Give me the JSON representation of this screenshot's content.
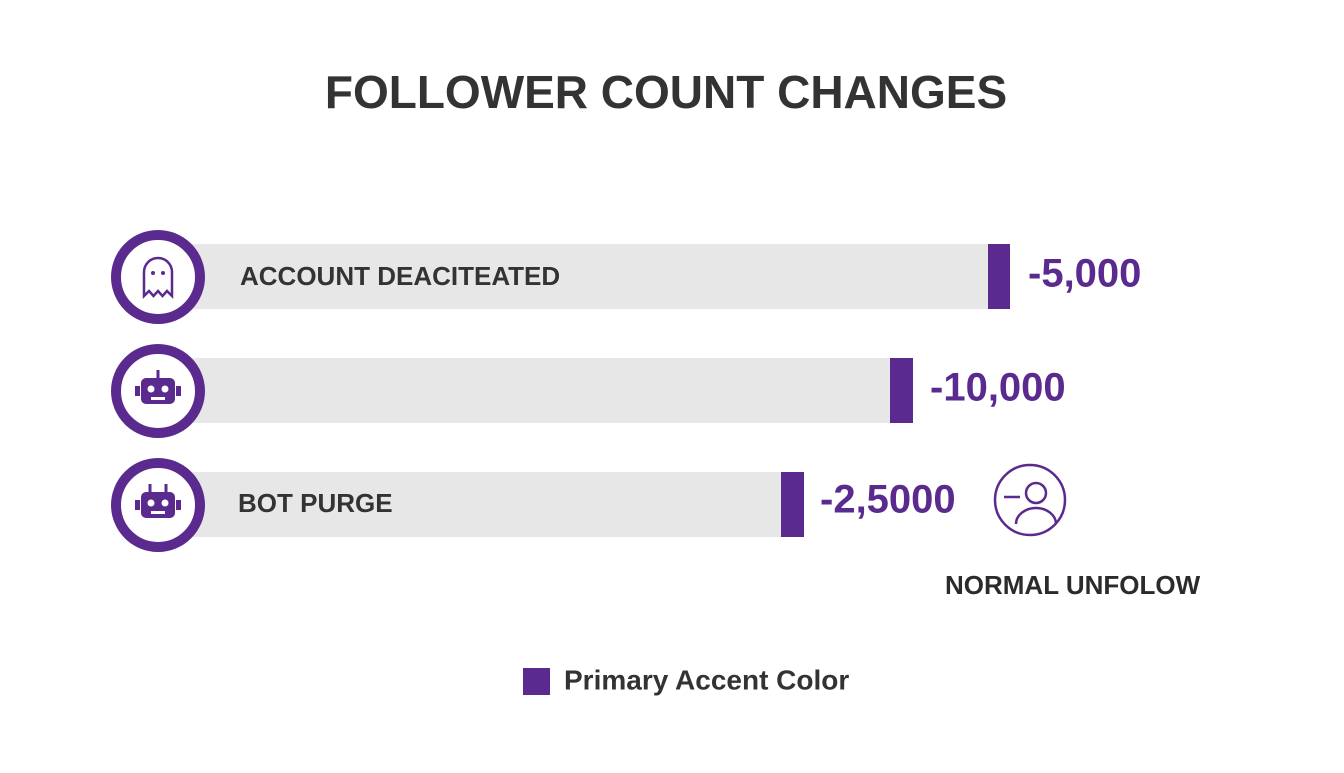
{
  "title": "FOLLOWER COUNT CHANGES",
  "rows": [
    {
      "label": "ACCOUNT DEACITEATED",
      "value": "-5,000"
    },
    {
      "value": "-10,000"
    },
    {
      "label": "BOT PURGE",
      "value": "-2,5000"
    }
  ],
  "note": "NORMAL UNFOLOW",
  "legend": "Primary Accent Color"
}
